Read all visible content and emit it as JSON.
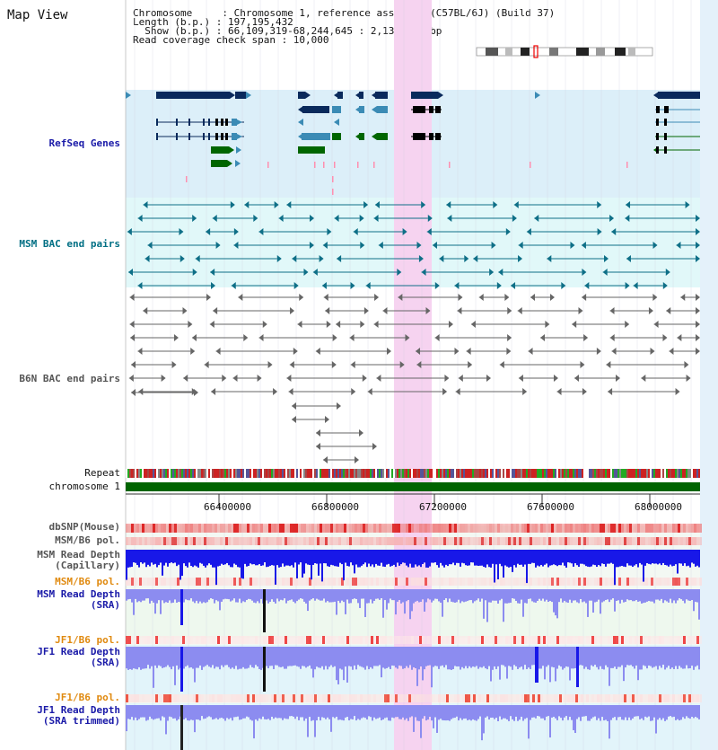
{
  "title": "Map View",
  "info": {
    "line1": "Chromosome     : Chromosome 1, reference assembly (C57BL/6J) (Build 37)",
    "line2": "Length (b.p.) : 197,195,432",
    "line3": "  Show (b.p.) : 66,109,319-68,244,645 : 2,135,327 bp",
    "line4": "Read coverage check span : 10,000"
  },
  "tracks": {
    "refseq": "RefSeq Genes",
    "msm_bac": "MSM BAC end pairs",
    "b6n_bac": "B6N BAC end pairs",
    "repeat": "Repeat",
    "chromosome": "chromosome 1",
    "dbsnp": "dbSNP(Mouse)",
    "msm_b6_pol": "MSM/B6 pol.",
    "msm_depth_cap_1": "MSM Read Depth",
    "msm_depth_cap_2": "(Capillary)",
    "msm_b6_pol2": "MSM/B6 pol.",
    "msm_depth_sra_1": "MSM Read Depth",
    "msm_depth_sra_2": "(SRA)",
    "jf1_b6_pol": "JF1/B6 pol.",
    "jf1_depth_sra_1": "JF1 Read Depth",
    "jf1_depth_sra_2": "(SRA)",
    "jf1_b6_pol2": "JF1/B6 pol.",
    "jf1_depth_trim_1": "JF1 Read Depth",
    "jf1_depth_trim_2": "(SRA trimmed)"
  },
  "axis_ticks": [
    "66400000",
    "66800000",
    "67200000",
    "67600000",
    "68000000"
  ],
  "colors": {
    "gene_dark": "#0a2a5c",
    "gene_mid": "#3b8bb5",
    "gene_green": "#006600",
    "highlight": "#f6d3f0",
    "refseq_bg": "#dceff9",
    "msm_bg": "#e1f8f9",
    "depth_blue": "#1818e8",
    "depth_light": "#8c8cf0",
    "chrom_green": "#006400"
  }
}
